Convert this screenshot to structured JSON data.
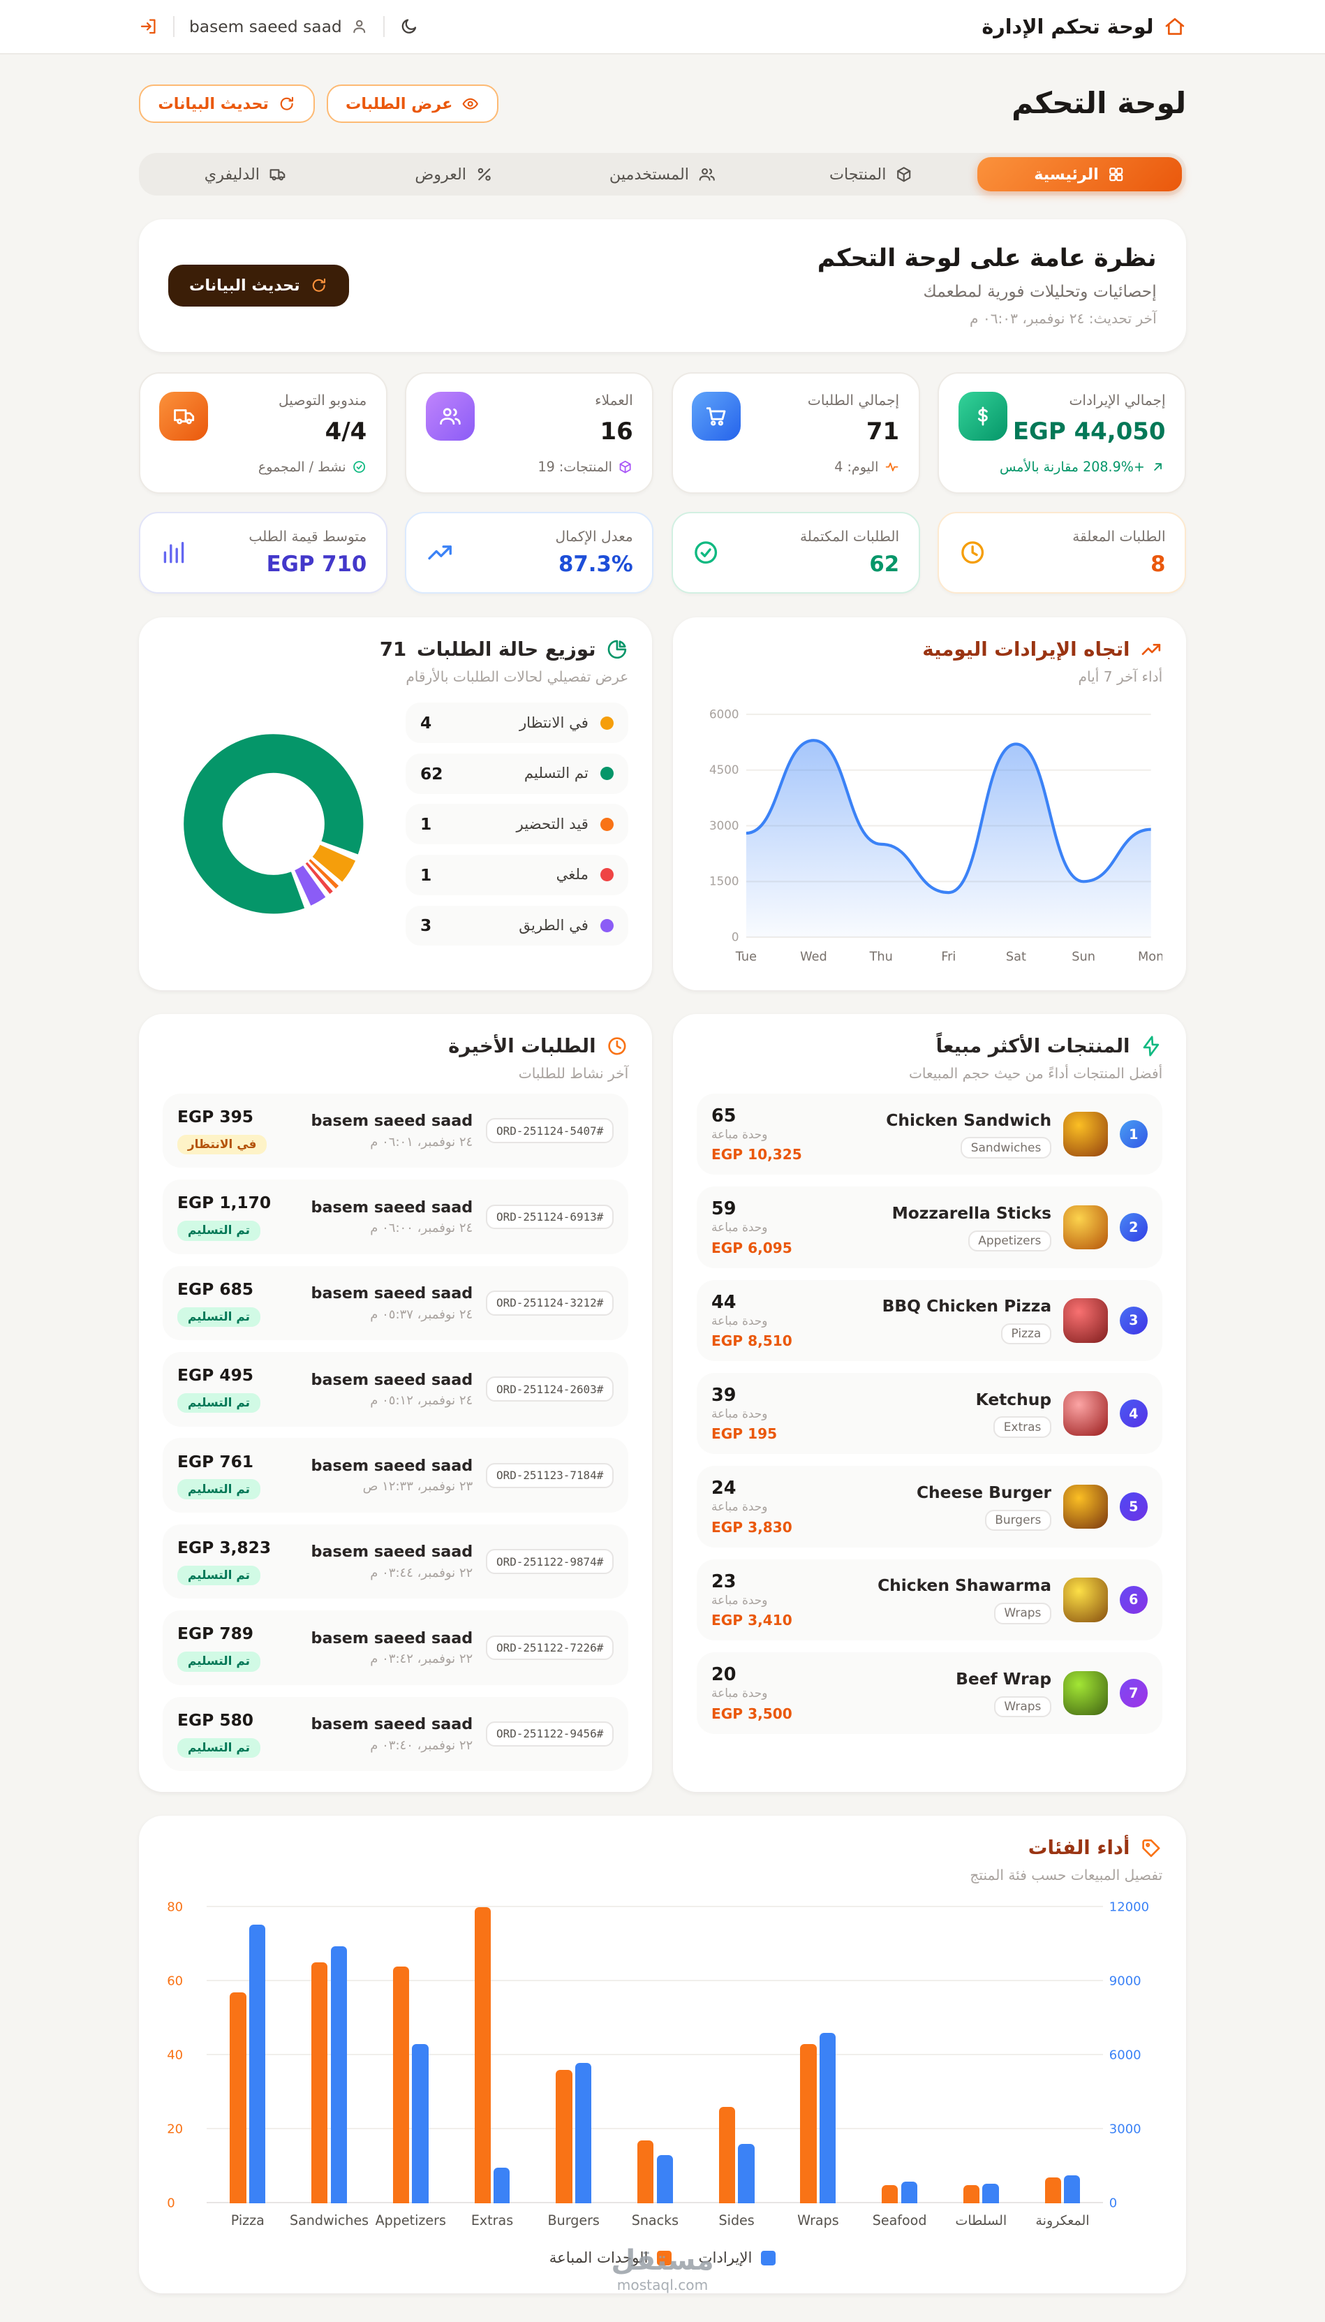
{
  "header": {
    "app_title": "لوحة تحكم الإدارة",
    "user_name": "basem saeed saad"
  },
  "page": {
    "title": "لوحة التحكم",
    "actions": [
      {
        "key": "view-orders",
        "label": "عرض الطلبات",
        "icon": "eye"
      },
      {
        "key": "refresh-data",
        "label": "تحديث البيانات",
        "icon": "refresh"
      }
    ]
  },
  "tabs": [
    {
      "key": "home",
      "label": "الرئيسية",
      "icon": "grid",
      "active": true
    },
    {
      "key": "products",
      "label": "المنتجات",
      "icon": "box",
      "active": false
    },
    {
      "key": "users",
      "label": "المستخدمين",
      "icon": "users",
      "active": false
    },
    {
      "key": "offers",
      "label": "العروض",
      "icon": "percent",
      "active": false
    },
    {
      "key": "delivery",
      "label": "الدليفري",
      "icon": "truck",
      "active": false
    }
  ],
  "overview": {
    "title": "نظرة عامة على لوحة التحكم",
    "subtitle": "إحصائيات وتحليلات فورية لمطعمك",
    "last_updated": "آخر تحديث: ٢٤ نوفمبر، ٠٦:٠٣ م",
    "refresh_label": "تحديث البيانات"
  },
  "kpis": [
    {
      "key": "revenue",
      "title": "إجمالي الإيرادات",
      "value": "EGP 44,050",
      "value_color": "#047857",
      "icon": "dollar",
      "icon_bg": "linear-gradient(135deg,#34d399,#059669)",
      "note": "+208.9% مقارنة بالأمس",
      "note_icon": "arrow-up-right",
      "note_color": "#059669",
      "note_icon_color": "#059669"
    },
    {
      "key": "orders",
      "title": "إجمالي الطلبات",
      "value": "71",
      "value_color": "#1c1917",
      "icon": "cart",
      "icon_bg": "linear-gradient(135deg,#60a5fa,#2563eb)",
      "note": "اليوم: 4",
      "note_icon": "activity",
      "note_color": "#78716c",
      "note_icon_color": "#f97316"
    },
    {
      "key": "customers",
      "title": "العملاء",
      "value": "16",
      "value_color": "#1c1917",
      "icon": "users",
      "icon_bg": "linear-gradient(135deg,#c084fc,#8b5cf6)",
      "note": "المنتجات: 19",
      "note_icon": "box",
      "note_color": "#78716c",
      "note_icon_color": "#a855f7"
    },
    {
      "key": "delivery",
      "title": "مندوبو التوصيل",
      "value": "4/4",
      "value_color": "#1c1917",
      "icon": "truck",
      "icon_bg": "linear-gradient(135deg,#fb923c,#ea580c)",
      "note": "نشط / المجموع",
      "note_icon": "check",
      "note_color": "#78716c",
      "note_icon_color": "#10b981"
    }
  ],
  "sub_kpis": [
    {
      "key": "pending",
      "title": "الطلبات المعلقة",
      "value": "8",
      "value_color": "#ea580c",
      "icon": "clock",
      "icon_color": "#f59e0b",
      "border_color": "#fde9cf"
    },
    {
      "key": "completed",
      "title": "الطلبات المكتملة",
      "value": "62",
      "value_color": "#059669",
      "icon": "check",
      "icon_color": "#10b981",
      "border_color": "#d2f0e2"
    },
    {
      "key": "rate",
      "title": "معدل الإكمال",
      "value": "87.3%",
      "value_color": "#1d4ed8",
      "icon": "trend",
      "icon_color": "#3b82f6",
      "border_color": "#dbeafe"
    },
    {
      "key": "avg",
      "title": "متوسط قيمة الطلب",
      "value": "EGP 710",
      "value_color": "#4338ca",
      "icon": "bars",
      "icon_color": "#6366f1",
      "border_color": "#e2e4f8"
    }
  ],
  "chart_data": [
    {
      "type": "donut",
      "title": "توزيع حالة الطلبات",
      "total_label": "71",
      "subtitle": "عرض تفصيلي لحالات الطلبات بالأرقام",
      "segments": [
        {
          "label": "في الانتظار",
          "value": 4,
          "color": "#f59e0b"
        },
        {
          "label": "تم التسليم",
          "value": 62,
          "color": "#059669"
        },
        {
          "label": "قيد التحضير",
          "value": 1,
          "color": "#f97316"
        },
        {
          "label": "ملغي",
          "value": 1,
          "color": "#ef4444"
        },
        {
          "label": "في الطريق",
          "value": 3,
          "color": "#8b5cf6"
        }
      ]
    },
    {
      "type": "area",
      "title": "اتجاه الإيرادات اليومية",
      "subtitle": "أداء آخر 7 أيام",
      "x": [
        "Tue",
        "Wed",
        "Thu",
        "Fri",
        "Sat",
        "Sun",
        "Mon"
      ],
      "values": [
        2800,
        5300,
        2500,
        1200,
        5200,
        1500,
        2900
      ],
      "ylim": [
        0,
        6000
      ],
      "yticks": [
        0,
        1500,
        3000,
        4500,
        6000
      ],
      "color": "#3b82f6"
    },
    {
      "type": "bar",
      "title": "أداء الفئات",
      "subtitle": "تفصيل المبيعات حسب فئة المنتج",
      "categories": [
        "Pizza",
        "Sandwiches",
        "Appetizers",
        "Extras",
        "Burgers",
        "Snacks",
        "Sides",
        "Wraps",
        "Seafood",
        "السلطات",
        "المعكرونة"
      ],
      "series": [
        {
          "name": "الوحدات المباعة",
          "axis": "left",
          "color": "#f97316",
          "values": [
            57,
            65,
            64,
            80,
            36,
            17,
            26,
            43,
            5,
            5,
            7
          ]
        },
        {
          "name": "الإيرادات",
          "axis": "right",
          "color": "#3b82f6",
          "values": [
            11300,
            10400,
            6450,
            1450,
            5700,
            1950,
            2400,
            6900,
            900,
            800,
            1150
          ]
        }
      ],
      "left_axis": {
        "ticks": [
          0,
          20,
          40,
          60,
          80
        ],
        "color": "#f97316"
      },
      "right_axis": {
        "ticks": [
          0,
          3000,
          6000,
          9000,
          12000
        ],
        "color": "#3b82f6"
      },
      "legend": [
        {
          "label": "الإيرادات",
          "color": "#3b82f6"
        },
        {
          "label": "الوحدات المباعة",
          "color": "#f97316"
        }
      ]
    }
  ],
  "top_products": {
    "title": "المنتجات الأكثر مبيعاً",
    "subtitle": "أفضل المنتجات أداءً من حيث حجم المبيعات",
    "units_label": "وحدة مباعة",
    "items": [
      {
        "rank": "1",
        "name": "Chicken Sandwich",
        "category": "Sandwiches",
        "units": "65",
        "revenue": "EGP 10,325"
      },
      {
        "rank": "2",
        "name": "Mozzarella Sticks",
        "category": "Appetizers",
        "units": "59",
        "revenue": "EGP 6,095"
      },
      {
        "rank": "3",
        "name": "BBQ Chicken Pizza",
        "category": "Pizza",
        "units": "44",
        "revenue": "EGP 8,510"
      },
      {
        "rank": "4",
        "name": "Ketchup",
        "category": "Extras",
        "units": "39",
        "revenue": "EGP 195"
      },
      {
        "rank": "5",
        "name": "Cheese Burger",
        "category": "Burgers",
        "units": "24",
        "revenue": "EGP 3,830"
      },
      {
        "rank": "6",
        "name": "Chicken Shawarma",
        "category": "Wraps",
        "units": "23",
        "revenue": "EGP 3,410"
      },
      {
        "rank": "7",
        "name": "Beef Wrap",
        "category": "Wraps",
        "units": "20",
        "revenue": "EGP 3,500"
      }
    ]
  },
  "recent_orders": {
    "title": "الطلبات الأخيرة",
    "subtitle": "آخر نشاط للطلبات",
    "items": [
      {
        "id": "ORD-251124-5407#",
        "customer": "basem saeed saad",
        "date": "٢٤ نوفمبر، ٠٦:٠١ م",
        "amount": "EGP 395",
        "status": "في الانتظار",
        "status_type": "pending"
      },
      {
        "id": "ORD-251124-6913#",
        "customer": "basem saeed saad",
        "date": "٢٤ نوفمبر، ٠٦:٠٠ م",
        "amount": "EGP 1,170",
        "status": "تم التسليم",
        "status_type": "delivered"
      },
      {
        "id": "ORD-251124-3212#",
        "customer": "basem saeed saad",
        "date": "٢٤ نوفمبر، ٠٥:٣٧ م",
        "amount": "EGP 685",
        "status": "تم التسليم",
        "status_type": "delivered"
      },
      {
        "id": "ORD-251124-2603#",
        "customer": "basem saeed saad",
        "date": "٢٤ نوفمبر، ٠٥:١٢ م",
        "amount": "EGP 495",
        "status": "تم التسليم",
        "status_type": "delivered"
      },
      {
        "id": "ORD-251123-7184#",
        "customer": "basem saeed saad",
        "date": "٢٣ نوفمبر، ١٢:٣٣ ص",
        "amount": "EGP 761",
        "status": "تم التسليم",
        "status_type": "delivered"
      },
      {
        "id": "ORD-251122-9874#",
        "customer": "basem saeed saad",
        "date": "٢٢ نوفمبر، ٠٣:٤٤ م",
        "amount": "EGP 3,823",
        "status": "تم التسليم",
        "status_type": "delivered"
      },
      {
        "id": "ORD-251122-7226#",
        "customer": "basem saeed saad",
        "date": "٢٢ نوفمبر، ٠٣:٤٢ م",
        "amount": "EGP 789",
        "status": "تم التسليم",
        "status_type": "delivered"
      },
      {
        "id": "ORD-251122-9456#",
        "customer": "basem saeed saad",
        "date": "٢٢ نوفمبر، ٠٣:٤٠ م",
        "amount": "EGP 580",
        "status": "تم التسليم",
        "status_type": "delivered"
      }
    ]
  },
  "watermark": {
    "text": "مستقل",
    "domain": "mostaql.com"
  }
}
